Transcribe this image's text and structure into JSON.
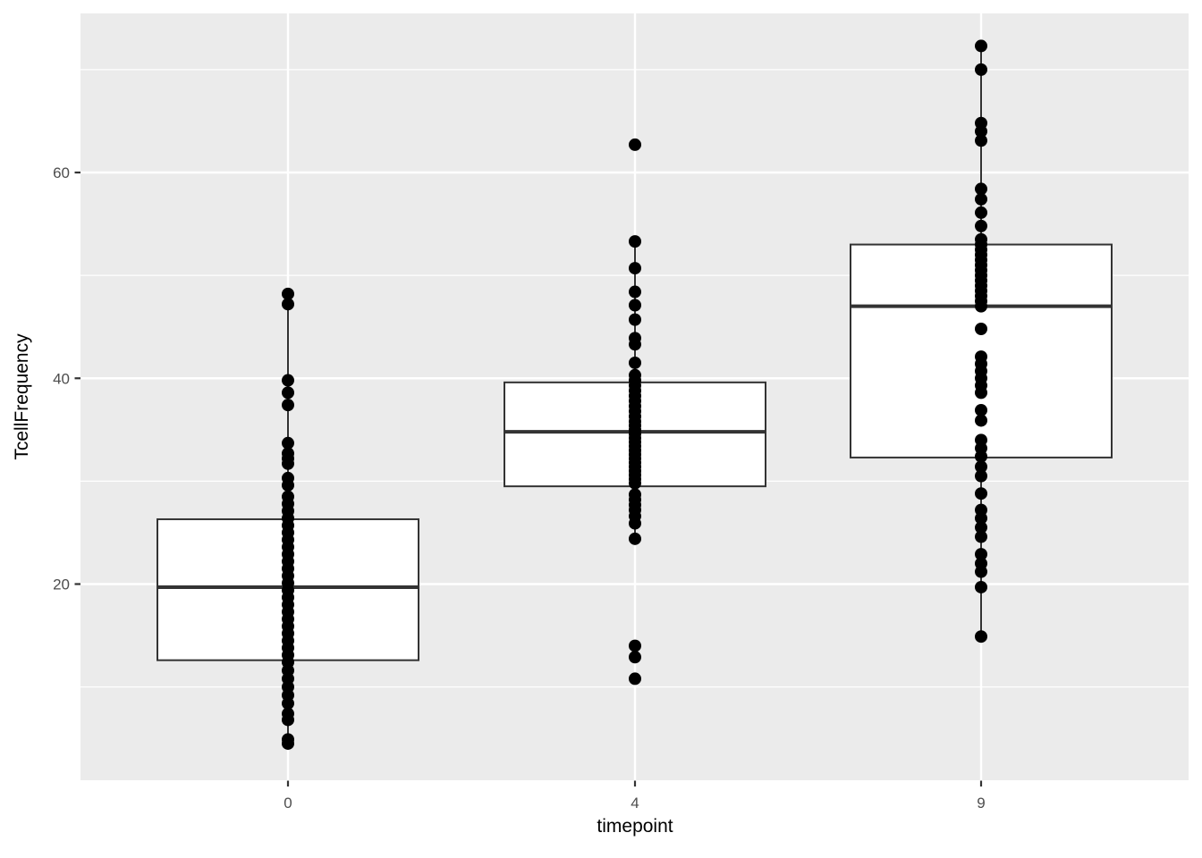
{
  "chart_data": {
    "type": "boxplot",
    "title": "",
    "xlabel": "timepoint",
    "ylabel": "TcellFrequency",
    "categories": [
      "0",
      "4",
      "9"
    ],
    "y_axis": {
      "ticks": [
        20,
        40,
        60
      ],
      "minor_ticks": [
        10,
        30,
        50,
        70
      ],
      "range": [
        0.9,
        75.5
      ]
    },
    "grid": true,
    "legend": false,
    "groups": [
      {
        "category": "0",
        "box": {
          "q1": 12.6,
          "median": 19.7,
          "q3": 26.3,
          "whisker_low": 4.5,
          "whisker_high": 48.2
        },
        "points": [
          48.2,
          47.2,
          39.8,
          38.6,
          37.4,
          33.7,
          32.7,
          32.2,
          31.7,
          30.3,
          29.6,
          28.5,
          27.8,
          27.1,
          26.4,
          25.7,
          25.0,
          24.3,
          23.6,
          22.9,
          22.2,
          21.5,
          20.8,
          20.1,
          19.4,
          18.7,
          18.0,
          17.3,
          16.6,
          15.9,
          15.2,
          14.5,
          13.8,
          13.1,
          12.4,
          11.6,
          10.8,
          10.0,
          9.2,
          8.4,
          7.4,
          6.8,
          4.9,
          4.5
        ]
      },
      {
        "category": "4",
        "box": {
          "q1": 29.5,
          "median": 34.8,
          "q3": 39.6,
          "whisker_low": 24.4,
          "whisker_high": 53.3
        },
        "points": [
          62.7,
          53.3,
          50.7,
          48.4,
          47.1,
          45.7,
          43.9,
          43.3,
          41.5,
          40.3,
          39.8,
          39.3,
          38.8,
          38.3,
          37.8,
          37.3,
          36.8,
          36.3,
          35.8,
          35.4,
          35.0,
          34.6,
          34.2,
          33.8,
          33.4,
          33.0,
          32.6,
          32.2,
          31.8,
          31.4,
          31.0,
          30.6,
          30.2,
          29.8,
          28.7,
          28.2,
          27.7,
          27.2,
          26.6,
          25.9,
          24.4,
          14.0,
          12.9,
          10.8
        ]
      },
      {
        "category": "9",
        "box": {
          "q1": 32.3,
          "median": 47.0,
          "q3": 53.0,
          "whisker_low": 14.9,
          "whisker_high": 72.3
        },
        "points": [
          72.3,
          70.0,
          64.8,
          64.0,
          63.1,
          58.4,
          57.4,
          56.1,
          54.8,
          53.5,
          53.0,
          52.5,
          52.0,
          51.5,
          51.0,
          50.5,
          50.0,
          49.5,
          49.0,
          48.5,
          48.0,
          47.5,
          47.0,
          44.8,
          42.1,
          41.4,
          40.7,
          40.0,
          39.3,
          38.6,
          36.9,
          35.9,
          34.0,
          33.2,
          32.4,
          31.4,
          30.5,
          28.8,
          27.2,
          26.4,
          25.5,
          24.6,
          22.9,
          22.0,
          21.2,
          19.7,
          14.9
        ]
      }
    ],
    "colors": {
      "panel_bg": "#EBEBEB",
      "gridline": "#FFFFFF",
      "box_fill": "#FFFFFF",
      "box_stroke": "#333333",
      "median_stroke": "#333333",
      "point_fill": "#000000",
      "tick_mark": "#333333",
      "tick_label": "#4D4D4D",
      "axis_title": "#000000"
    },
    "layout_hints": {
      "point_overlay": "points drawn on top of boxes at category center, no jitter",
      "legend_position": "none"
    }
  }
}
